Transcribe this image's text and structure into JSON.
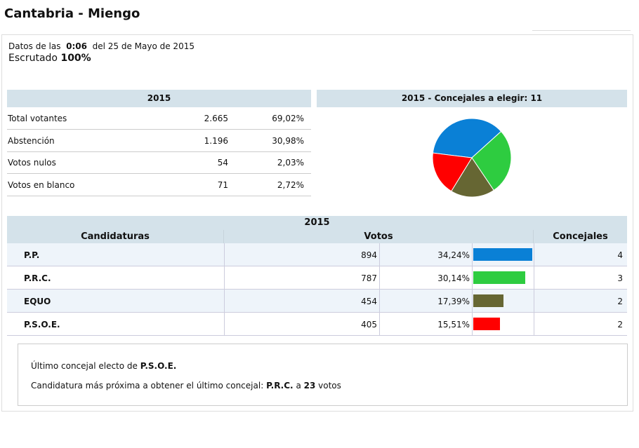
{
  "header": {
    "title": "Cantabria - Miengo"
  },
  "info": {
    "prefix": "Datos de las",
    "time": "0:06",
    "date_text": "del 25 de Mayo de 2015",
    "scrutiny_label": "Escrutado",
    "scrutiny_value": "100%"
  },
  "summary": {
    "title": "2015",
    "rows": [
      [
        "Total votantes",
        "2.665",
        "69,02%"
      ],
      [
        "Abstención",
        "1.196",
        "30,98%"
      ],
      [
        "Votos nulos",
        "54",
        "2,03%"
      ],
      [
        "Votos en blanco",
        "71",
        "2,72%"
      ]
    ]
  },
  "pie": {
    "title": "2015 - Concejales a elegir: 11"
  },
  "results": {
    "title": "2015",
    "columns": [
      "Candidaturas",
      "Votos",
      "Concejales"
    ],
    "rows": [
      {
        "party": "P.P.",
        "votes": "894",
        "percent": 34.24,
        "percent_label": "34,24%",
        "seats": 4,
        "color": "#0a80d6"
      },
      {
        "party": "P.R.C.",
        "votes": "787",
        "percent": 30.14,
        "percent_label": "30,14%",
        "seats": 3,
        "color": "#2ecc40"
      },
      {
        "party": "EQUO",
        "votes": "454",
        "percent": 17.39,
        "percent_label": "17,39%",
        "seats": 2,
        "color": "#666633"
      },
      {
        "party": "P.S.O.E.",
        "votes": "405",
        "percent": 15.51,
        "percent_label": "15,51%",
        "seats": 2,
        "color": "#ff0000"
      }
    ]
  },
  "note": {
    "last_elected_text": "Último concejal electo de",
    "last_elected_party": "P.S.O.E.",
    "next_text": "Candidatura más próxima a obtener el último concejal:",
    "next_party": "P.R.C.",
    "next_a": "a",
    "next_votes": "23",
    "next_unit": "votos"
  }
}
